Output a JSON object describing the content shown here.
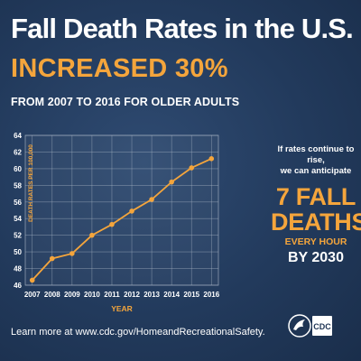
{
  "header": {
    "title": "Fall Death Rates in the U.S.",
    "subtitle": "INCREASED 30%",
    "range": "FROM 2007 TO 2016 FOR OLDER ADULTS"
  },
  "side": {
    "condition_line1": "If rates continue to rise,",
    "condition_line2": "we can anticipate",
    "big_line1": "7 FALL",
    "big_line2": "DEATHS",
    "every": "EVERY HOUR",
    "by_year": "BY 2030"
  },
  "footer": {
    "learn_more": "Learn more at www.cdc.gov/HomeandRecreationalSafety."
  },
  "logo": {
    "text": "CDC"
  },
  "colors": {
    "background": "#223a5c",
    "accent": "#f4a53c",
    "grid": "#b8c2cf",
    "text": "#ffffff"
  },
  "chart_data": {
    "type": "line",
    "x": [
      2007,
      2008,
      2009,
      2010,
      2011,
      2012,
      2013,
      2014,
      2015,
      2016
    ],
    "series": [
      {
        "values": [
          46.6,
          49.2,
          49.8,
          52.0,
          53.3,
          54.9,
          56.3,
          58.4,
          60.1,
          61.2
        ]
      }
    ],
    "xlabel": "YEAR",
    "ylabel": "DEATH RATES PER 100,000",
    "ylim": [
      46,
      64
    ],
    "yticks": [
      46,
      48,
      50,
      52,
      54,
      56,
      58,
      60,
      62,
      64
    ],
    "grid": true,
    "line_color": "#f4a53c"
  }
}
